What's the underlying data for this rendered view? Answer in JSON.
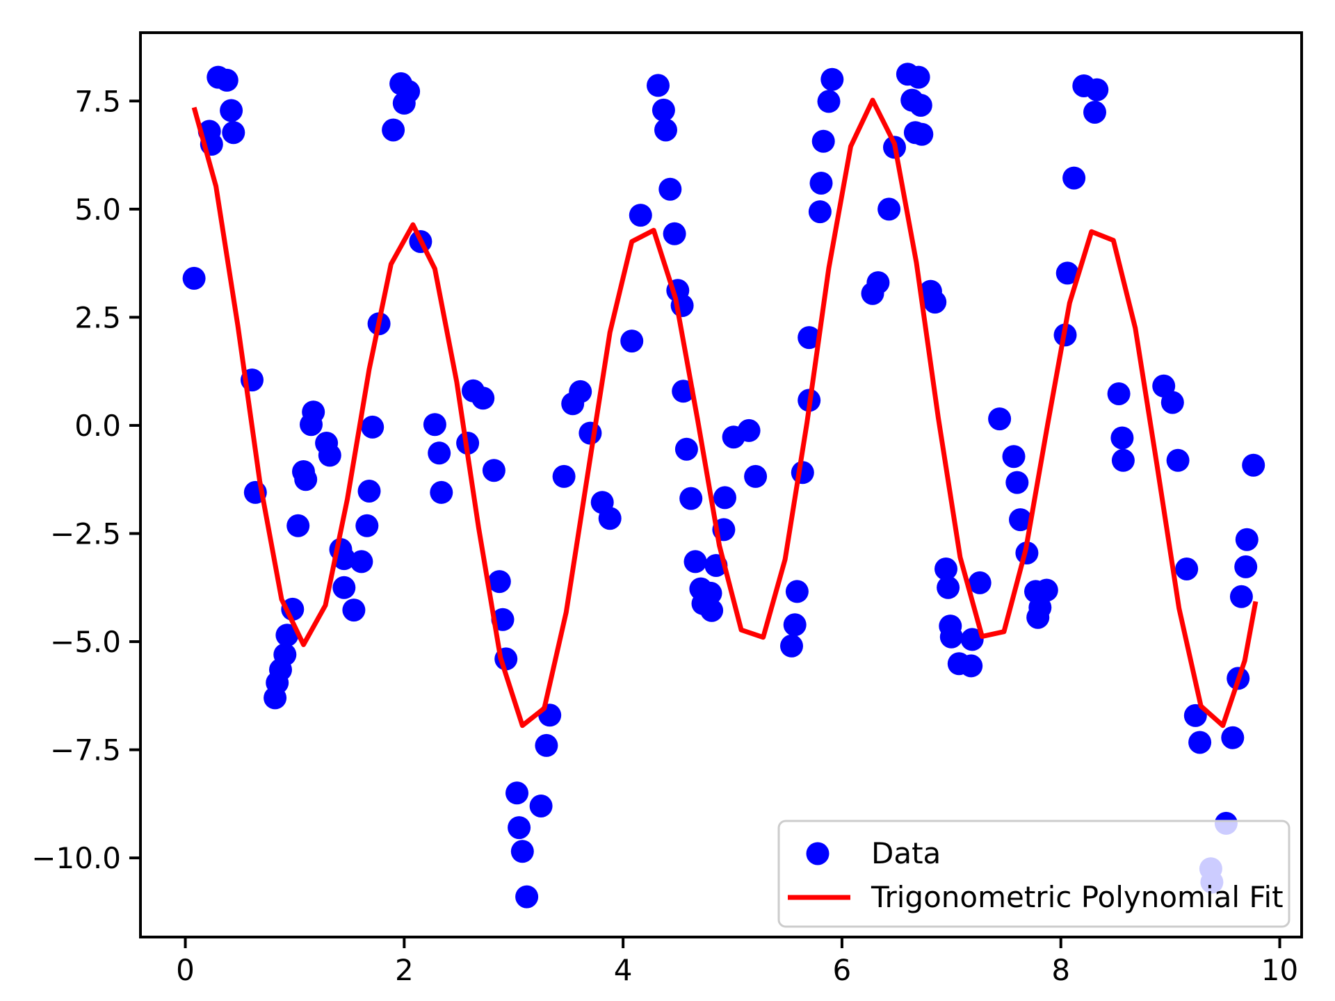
{
  "page": {
    "background": "#ffffff"
  },
  "chart_data": {
    "type": "scatter",
    "title": "",
    "xlabel": "",
    "ylabel": "",
    "xlim": [
      -0.41,
      10.2
    ],
    "ylim": [
      -11.83,
      9.08
    ],
    "grid": false,
    "legend_position": "lower right",
    "x_ticks": [
      0,
      2,
      4,
      6,
      8,
      10
    ],
    "x_tick_labels": [
      "0",
      "2",
      "4",
      "6",
      "8",
      "10"
    ],
    "y_ticks": [
      7.5,
      5.0,
      2.5,
      0.0,
      -2.5,
      -5.0,
      -7.5,
      -10.0
    ],
    "y_tick_labels": [
      "7.5",
      "5.0",
      "2.5",
      "0.0",
      "−2.5",
      "−5.0",
      "−7.5",
      "−10.0"
    ],
    "colors": {
      "scatter": "#0000ff",
      "line": "#ff0000",
      "axis": "#000000",
      "legend_border": "#cccccc",
      "legend_bg": "#ffffff"
    },
    "series": [
      {
        "name": "Data",
        "type": "scatter",
        "color": "#0000ff",
        "points": [
          [
            0.08,
            3.4
          ],
          [
            0.22,
            6.8
          ],
          [
            0.24,
            6.5
          ],
          [
            0.3,
            8.05
          ],
          [
            0.38,
            7.98
          ],
          [
            0.42,
            7.28
          ],
          [
            0.44,
            6.77
          ],
          [
            0.61,
            1.05
          ],
          [
            0.64,
            -1.55
          ],
          [
            0.82,
            -6.3
          ],
          [
            0.84,
            -5.95
          ],
          [
            0.87,
            -5.65
          ],
          [
            0.91,
            -5.3
          ],
          [
            0.93,
            -4.85
          ],
          [
            0.98,
            -4.25
          ],
          [
            1.03,
            -2.32
          ],
          [
            1.08,
            -1.07
          ],
          [
            1.1,
            -1.25
          ],
          [
            1.15,
            0.02
          ],
          [
            1.17,
            0.31
          ],
          [
            1.29,
            -0.41
          ],
          [
            1.32,
            -0.69
          ],
          [
            1.42,
            -2.87
          ],
          [
            1.45,
            -3.08
          ],
          [
            1.45,
            -3.75
          ],
          [
            1.54,
            -4.27
          ],
          [
            1.61,
            -3.15
          ],
          [
            1.66,
            -2.32
          ],
          [
            1.68,
            -1.52
          ],
          [
            1.71,
            -0.04
          ],
          [
            1.77,
            2.35
          ],
          [
            1.9,
            6.83
          ],
          [
            1.97,
            7.9
          ],
          [
            2.0,
            7.45
          ],
          [
            2.04,
            7.72
          ],
          [
            2.15,
            4.25
          ],
          [
            2.28,
            0.02
          ],
          [
            2.32,
            -0.64
          ],
          [
            2.34,
            -1.55
          ],
          [
            2.58,
            -0.41
          ],
          [
            2.63,
            0.8
          ],
          [
            2.72,
            0.63
          ],
          [
            2.82,
            -1.04
          ],
          [
            2.87,
            -3.61
          ],
          [
            2.9,
            -4.49
          ],
          [
            2.93,
            -5.4
          ],
          [
            3.03,
            -8.5
          ],
          [
            3.05,
            -9.3
          ],
          [
            3.08,
            -9.85
          ],
          [
            3.12,
            -10.9
          ],
          [
            3.25,
            -8.8
          ],
          [
            3.3,
            -7.4
          ],
          [
            3.33,
            -6.7
          ],
          [
            3.46,
            -1.18
          ],
          [
            3.54,
            0.5
          ],
          [
            3.61,
            0.78
          ],
          [
            3.7,
            -0.18
          ],
          [
            3.81,
            -1.78
          ],
          [
            3.88,
            -2.15
          ],
          [
            4.08,
            1.95
          ],
          [
            4.16,
            4.86
          ],
          [
            4.32,
            7.86
          ],
          [
            4.37,
            7.29
          ],
          [
            4.39,
            6.83
          ],
          [
            4.43,
            5.46
          ],
          [
            4.47,
            4.43
          ],
          [
            4.5,
            3.12
          ],
          [
            4.54,
            2.77
          ],
          [
            4.55,
            0.79
          ],
          [
            4.58,
            -0.55
          ],
          [
            4.62,
            -1.69
          ],
          [
            4.66,
            -3.15
          ],
          [
            4.71,
            -3.78
          ],
          [
            4.73,
            -4.12
          ],
          [
            4.8,
            -3.88
          ],
          [
            4.81,
            -4.28
          ],
          [
            4.85,
            -3.24
          ],
          [
            4.92,
            -2.41
          ],
          [
            4.93,
            -1.67
          ],
          [
            5.01,
            -0.27
          ],
          [
            5.15,
            -0.12
          ],
          [
            5.21,
            -1.18
          ],
          [
            5.54,
            -5.1
          ],
          [
            5.57,
            -4.61
          ],
          [
            5.59,
            -3.84
          ],
          [
            5.64,
            -1.09
          ],
          [
            5.7,
            0.58
          ],
          [
            5.7,
            2.03
          ],
          [
            5.8,
            4.94
          ],
          [
            5.81,
            5.6
          ],
          [
            5.83,
            6.57
          ],
          [
            5.88,
            7.49
          ],
          [
            5.91,
            8.0
          ],
          [
            6.28,
            3.05
          ],
          [
            6.33,
            3.3
          ],
          [
            6.43,
            5.0
          ],
          [
            6.48,
            6.43
          ],
          [
            6.6,
            8.12
          ],
          [
            6.64,
            7.52
          ],
          [
            6.67,
            6.77
          ],
          [
            6.7,
            8.05
          ],
          [
            6.72,
            7.4
          ],
          [
            6.73,
            6.73
          ],
          [
            6.81,
            3.1
          ],
          [
            6.85,
            2.85
          ],
          [
            6.95,
            -3.32
          ],
          [
            6.97,
            -3.75
          ],
          [
            6.99,
            -4.64
          ],
          [
            7.0,
            -4.89
          ],
          [
            7.07,
            -5.51
          ],
          [
            7.18,
            -5.56
          ],
          [
            7.19,
            -4.95
          ],
          [
            7.26,
            -3.64
          ],
          [
            7.44,
            0.15
          ],
          [
            7.57,
            -0.72
          ],
          [
            7.6,
            -1.32
          ],
          [
            7.63,
            -2.18
          ],
          [
            7.69,
            -2.95
          ],
          [
            7.77,
            -3.84
          ],
          [
            7.79,
            -4.44
          ],
          [
            7.81,
            -4.21
          ],
          [
            7.87,
            -3.81
          ],
          [
            8.04,
            2.09
          ],
          [
            8.06,
            3.52
          ],
          [
            8.12,
            5.72
          ],
          [
            8.21,
            7.85
          ],
          [
            8.31,
            7.24
          ],
          [
            8.33,
            7.76
          ],
          [
            8.53,
            0.73
          ],
          [
            8.56,
            -0.29
          ],
          [
            8.57,
            -0.81
          ],
          [
            8.94,
            0.91
          ],
          [
            9.02,
            0.53
          ],
          [
            9.07,
            -0.81
          ],
          [
            9.15,
            -3.32
          ],
          [
            9.23,
            -6.71
          ],
          [
            9.27,
            -7.33
          ],
          [
            9.37,
            -10.25
          ],
          [
            9.38,
            -10.56
          ],
          [
            9.51,
            -9.2
          ],
          [
            9.57,
            -7.22
          ],
          [
            9.62,
            -5.85
          ],
          [
            9.65,
            -3.96
          ],
          [
            9.69,
            -3.27
          ],
          [
            9.7,
            -2.64
          ],
          [
            9.76,
            -0.92
          ]
        ]
      },
      {
        "name": "Trigonometric Polynomial Fit",
        "type": "line",
        "color": "#ff0000",
        "points": [
          [
            0.08,
            7.35
          ],
          [
            0.28,
            5.53
          ],
          [
            0.48,
            2.3
          ],
          [
            0.68,
            -1.29
          ],
          [
            0.88,
            -4.02
          ],
          [
            1.08,
            -5.07
          ],
          [
            1.28,
            -4.16
          ],
          [
            1.48,
            -1.71
          ],
          [
            1.68,
            1.3
          ],
          [
            1.88,
            3.73
          ],
          [
            2.08,
            4.64
          ],
          [
            2.28,
            3.62
          ],
          [
            2.48,
            1.0
          ],
          [
            2.68,
            -2.37
          ],
          [
            2.88,
            -5.37
          ],
          [
            3.08,
            -6.94
          ],
          [
            3.28,
            -6.54
          ],
          [
            3.48,
            -4.32
          ],
          [
            3.68,
            -1.07
          ],
          [
            3.88,
            2.15
          ],
          [
            4.08,
            4.25
          ],
          [
            4.28,
            4.51
          ],
          [
            4.48,
            2.93
          ],
          [
            4.68,
            0.14
          ],
          [
            4.88,
            -2.78
          ],
          [
            5.08,
            -4.73
          ],
          [
            5.28,
            -4.9
          ],
          [
            5.48,
            -3.1
          ],
          [
            5.68,
            0.06
          ],
          [
            5.88,
            3.64
          ],
          [
            6.08,
            6.45
          ],
          [
            6.28,
            7.52
          ],
          [
            6.48,
            6.51
          ],
          [
            6.68,
            3.76
          ],
          [
            6.88,
            0.18
          ],
          [
            7.08,
            -3.05
          ],
          [
            7.28,
            -4.88
          ],
          [
            7.48,
            -4.77
          ],
          [
            7.68,
            -2.86
          ],
          [
            7.88,
            0.03
          ],
          [
            8.08,
            2.83
          ],
          [
            8.28,
            4.48
          ],
          [
            8.48,
            4.28
          ],
          [
            8.68,
            2.25
          ],
          [
            8.88,
            -0.94
          ],
          [
            9.08,
            -4.23
          ],
          [
            9.28,
            -6.49
          ],
          [
            9.48,
            -6.94
          ],
          [
            9.68,
            -5.44
          ],
          [
            9.78,
            -4.07
          ]
        ]
      }
    ]
  },
  "legend": {
    "entries": [
      {
        "label": "Data",
        "marker": "dot"
      },
      {
        "label": "Trigonometric Polynomial Fit",
        "marker": "line"
      }
    ]
  }
}
